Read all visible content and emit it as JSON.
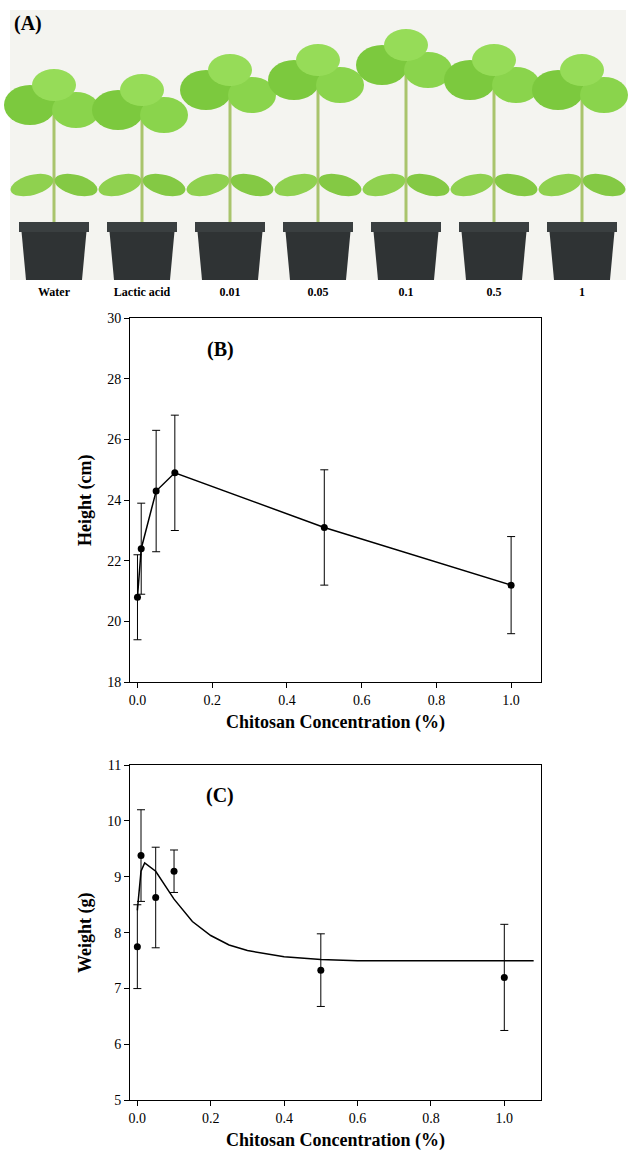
{
  "panel_a": {
    "label": "(A)",
    "treatments": [
      "Water",
      "Lactic acid",
      "0.01",
      "0.05",
      "0.1",
      "0.5",
      "1"
    ]
  },
  "chart_data": [
    {
      "type": "line",
      "title": "(B)",
      "x_label": "Chitosan Concentration (%)",
      "y_label": "Height (cm)",
      "x": [
        0,
        0.01,
        0.05,
        0.1,
        0.5,
        1.0
      ],
      "series": [
        {
          "type": "line",
          "marker": "circle",
          "color": "#000000",
          "values": [
            20.8,
            22.4,
            24.3,
            24.9,
            23.1,
            21.2
          ],
          "errors": [
            1.4,
            1.5,
            2.0,
            1.9,
            1.9,
            1.6
          ]
        }
      ],
      "xlim": [
        -0.02,
        1.08
      ],
      "xticks": [
        {
          "value": 0,
          "label": "0.0"
        },
        0.2,
        0.4,
        0.6,
        0.8,
        {
          "value": 1,
          "label": "1.0"
        }
      ],
      "ylim": [
        18,
        30
      ],
      "yticks": [
        18,
        20,
        22,
        24,
        26,
        28,
        30
      ],
      "grid": false
    },
    {
      "type": "scatter",
      "title": "(C)",
      "x_label": "Chitosan Concentration (%)",
      "y_label": "Weight (g)",
      "series": [
        {
          "type": "scatter",
          "marker": "circle",
          "color": "#000000",
          "x": [
            0,
            0.01,
            0.05,
            0.1,
            0.5,
            1.0
          ],
          "values": [
            7.75,
            9.38,
            8.63,
            9.1,
            7.33,
            7.2
          ],
          "errors": [
            0.75,
            0.82,
            0.9,
            0.38,
            0.65,
            0.95
          ]
        },
        {
          "type": "line",
          "color": "#000000",
          "line_style": "solid",
          "x": [
            0,
            0.01,
            0.02,
            0.05,
            0.1,
            0.15,
            0.2,
            0.25,
            0.3,
            0.4,
            0.5,
            0.6,
            0.8,
            1.0,
            1.08
          ],
          "values": [
            8.4,
            9.1,
            9.25,
            9.1,
            8.6,
            8.2,
            7.95,
            7.78,
            7.68,
            7.57,
            7.52,
            7.5,
            7.5,
            7.5,
            7.5
          ]
        }
      ],
      "xlim": [
        -0.02,
        1.1
      ],
      "xticks": [
        {
          "value": 0,
          "label": "0.0"
        },
        0.2,
        0.4,
        0.6,
        0.8,
        {
          "value": 1,
          "label": "1.0"
        }
      ],
      "ylim": [
        5,
        11
      ],
      "yticks": [
        5,
        6,
        7,
        8,
        9,
        10,
        11
      ],
      "grid": false
    }
  ]
}
